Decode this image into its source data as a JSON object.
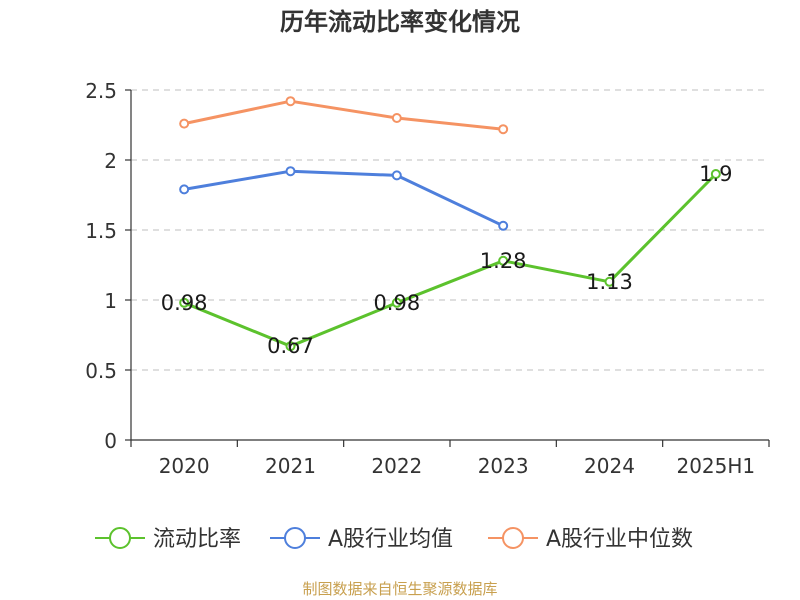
{
  "chart_data": {
    "type": "line",
    "title": "历年流动比率变化情况",
    "categories": [
      "2020",
      "2021",
      "2022",
      "2023",
      "2024",
      "2025H1"
    ],
    "ylim": [
      0,
      2.5
    ],
    "yticks": [
      "0",
      "0.5",
      "1",
      "1.5",
      "2",
      "2.5"
    ],
    "grid": true,
    "legend_position": "bottom",
    "series": [
      {
        "name": "流动比率",
        "color": "#5cc22d",
        "values": [
          0.98,
          0.67,
          0.98,
          1.28,
          1.13,
          1.9
        ],
        "labels": [
          "0.98",
          "0.67",
          "0.98",
          "1.28",
          "1.13",
          "1.9"
        ]
      },
      {
        "name": "A股行业均值",
        "color": "#4e7fdc",
        "values": [
          1.79,
          1.92,
          1.89,
          1.53,
          null,
          null
        ]
      },
      {
        "name": "A股行业中位数",
        "color": "#f59363",
        "values": [
          2.26,
          2.42,
          2.3,
          2.22,
          null,
          null
        ]
      }
    ]
  },
  "source": "制图数据来自恒生聚源数据库"
}
